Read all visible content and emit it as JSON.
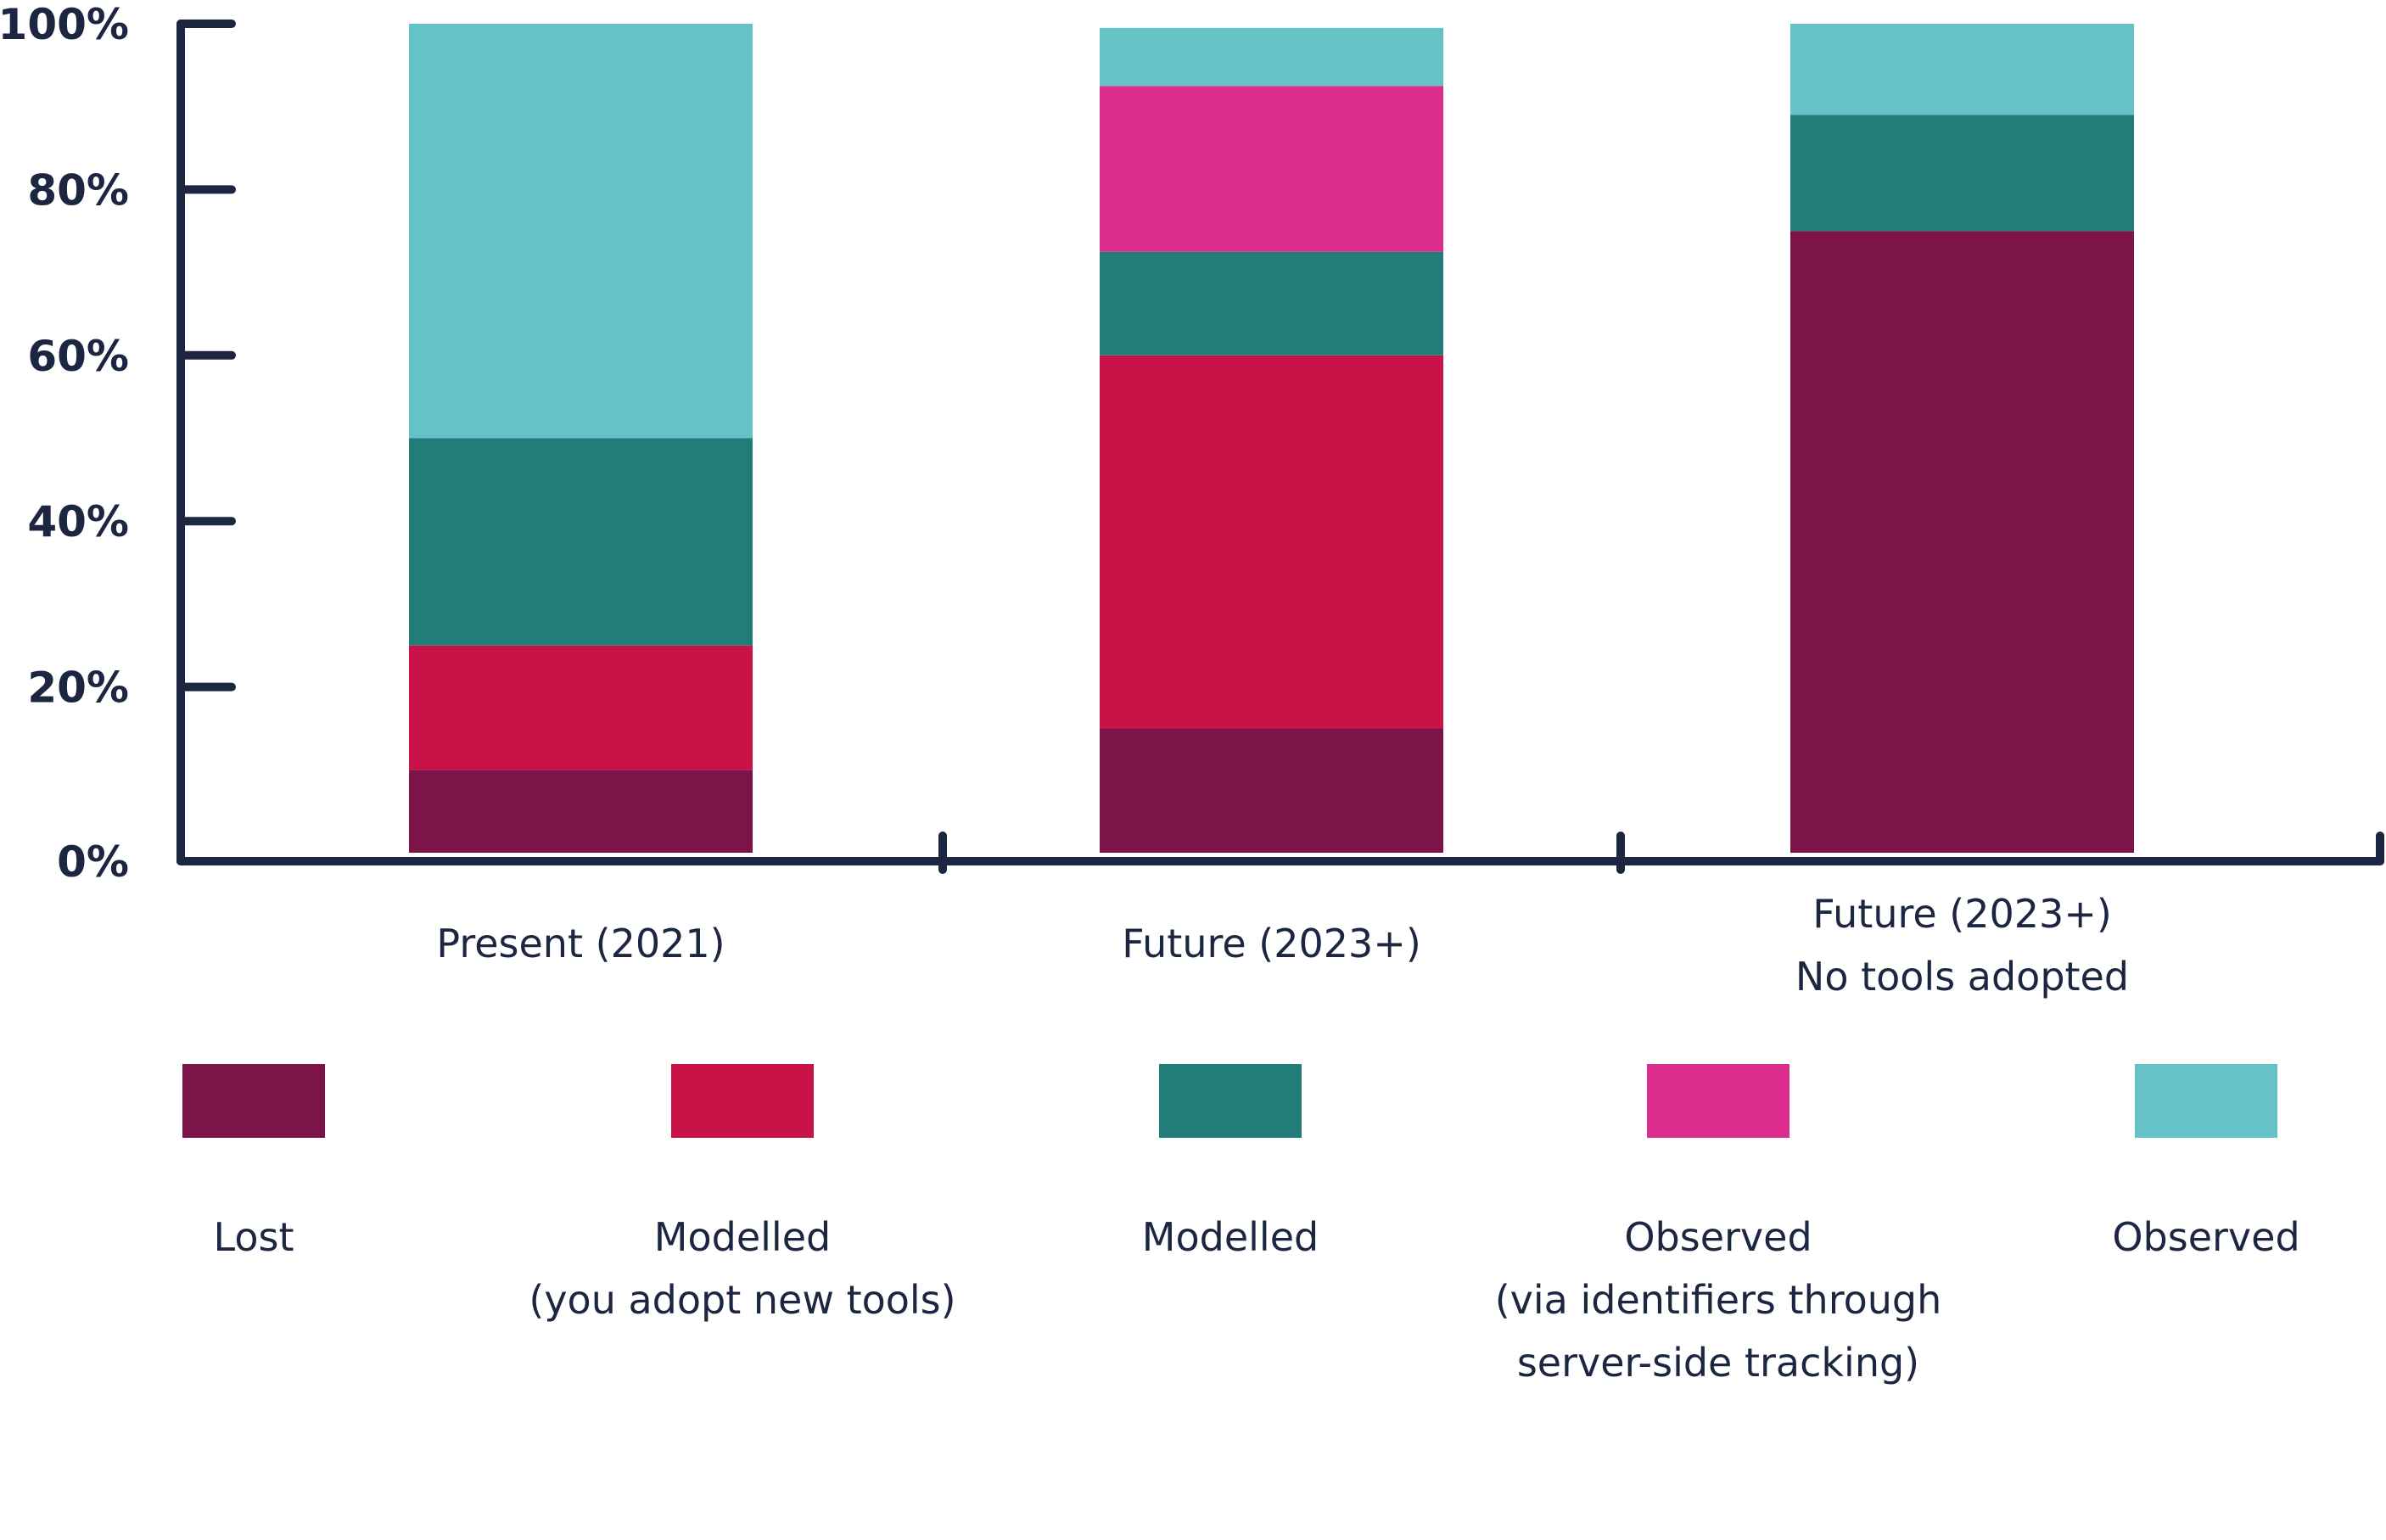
{
  "chart_data": {
    "type": "bar",
    "stacked": true,
    "categories": [
      [
        "Present (2021)"
      ],
      [
        "Future (2023+)"
      ],
      [
        "Future (2023+)",
        "No tools adopted"
      ]
    ],
    "series": [
      {
        "name": [
          "Lost"
        ],
        "color": "#7d1449",
        "values": [
          10,
          15,
          75
        ]
      },
      {
        "name": [
          "Modelled",
          "(you adopt new tools)"
        ],
        "color": "#c81248",
        "values": [
          15,
          45,
          0
        ]
      },
      {
        "name": [
          "Modelled"
        ],
        "color": "#227c77",
        "values": [
          25,
          12.5,
          14
        ]
      },
      {
        "name": [
          "Observed",
          "(via identifiers through",
          "server-side tracking)"
        ],
        "color": "#dc2d8c",
        "values": [
          0,
          20,
          0
        ]
      },
      {
        "name": [
          "Observed"
        ],
        "color": "#65c3c8",
        "values": [
          50,
          7,
          11
        ]
      }
    ],
    "yticks": [
      "0%",
      "20%",
      "40%",
      "60%",
      "80%",
      "100%"
    ],
    "ylim": [
      0,
      100
    ],
    "grid": false,
    "legend_position": "bottom"
  }
}
